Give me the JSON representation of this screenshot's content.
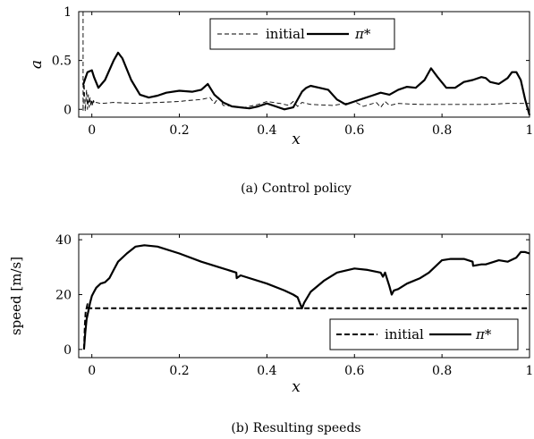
{
  "chart_data": [
    {
      "type": "line",
      "caption": "(a) Control policy",
      "xlabel": "x",
      "ylabel": "a",
      "xlim": [
        -0.03,
        1.0
      ],
      "ylim": [
        -0.08,
        1.0
      ],
      "xticks": [
        "0",
        "0.2",
        "0.4",
        "0.6",
        "0.8",
        "1"
      ],
      "xtick_values": [
        0,
        0.2,
        0.4,
        0.6,
        0.8,
        1
      ],
      "yticks": [
        "0",
        "0.5",
        "1"
      ],
      "ytick_values": [
        0,
        0.5,
        1
      ],
      "legend_position": "top-right",
      "series": [
        {
          "name": "initial",
          "style": "dashed",
          "x": [
            -0.02,
            -0.02,
            -0.018,
            -0.015,
            -0.012,
            -0.01,
            -0.008,
            -0.006,
            -0.004,
            -0.002,
            0.0,
            0.002,
            0.004,
            0.006,
            0.01,
            0.02,
            0.05,
            0.1,
            0.15,
            0.2,
            0.22,
            0.25,
            0.27,
            0.28,
            0.29,
            0.3,
            0.35,
            0.38,
            0.4,
            0.43,
            0.45,
            0.46,
            0.47,
            0.48,
            0.5,
            0.55,
            0.58,
            0.6,
            0.62,
            0.65,
            0.66,
            0.67,
            0.68,
            0.7,
            0.75,
            0.8,
            0.85,
            0.9,
            0.95,
            1.0
          ],
          "y": [
            1.0,
            -0.02,
            0.3,
            -0.02,
            0.2,
            0.0,
            0.15,
            0.02,
            0.12,
            0.03,
            0.1,
            0.04,
            0.09,
            0.06,
            0.07,
            0.06,
            0.07,
            0.06,
            0.07,
            0.08,
            0.09,
            0.1,
            0.12,
            0.06,
            0.12,
            0.04,
            0.02,
            0.05,
            0.08,
            0.06,
            0.04,
            0.08,
            0.03,
            0.07,
            0.05,
            0.04,
            0.06,
            0.08,
            0.03,
            0.07,
            0.02,
            0.08,
            0.04,
            0.06,
            0.05,
            0.05,
            0.05,
            0.05,
            0.06,
            0.06
          ]
        },
        {
          "name": "π*",
          "style": "solid",
          "x": [
            -0.02,
            -0.01,
            0.0,
            0.005,
            0.015,
            0.03,
            0.05,
            0.06,
            0.07,
            0.09,
            0.11,
            0.13,
            0.15,
            0.17,
            0.2,
            0.23,
            0.25,
            0.265,
            0.28,
            0.3,
            0.32,
            0.34,
            0.36,
            0.38,
            0.4,
            0.42,
            0.44,
            0.46,
            0.48,
            0.49,
            0.5,
            0.52,
            0.54,
            0.56,
            0.58,
            0.6,
            0.62,
            0.64,
            0.66,
            0.68,
            0.7,
            0.72,
            0.74,
            0.76,
            0.775,
            0.79,
            0.81,
            0.83,
            0.85,
            0.87,
            0.89,
            0.9,
            0.91,
            0.93,
            0.95,
            0.96,
            0.97,
            0.98,
            0.99,
            1.0
          ],
          "y": [
            0.25,
            0.38,
            0.4,
            0.33,
            0.22,
            0.3,
            0.5,
            0.58,
            0.52,
            0.3,
            0.15,
            0.12,
            0.14,
            0.17,
            0.19,
            0.18,
            0.2,
            0.26,
            0.15,
            0.07,
            0.03,
            0.02,
            0.01,
            0.03,
            0.06,
            0.03,
            0.0,
            0.02,
            0.18,
            0.22,
            0.24,
            0.22,
            0.2,
            0.1,
            0.05,
            0.08,
            0.11,
            0.14,
            0.17,
            0.15,
            0.2,
            0.23,
            0.22,
            0.3,
            0.42,
            0.33,
            0.22,
            0.22,
            0.28,
            0.3,
            0.33,
            0.32,
            0.28,
            0.26,
            0.32,
            0.38,
            0.38,
            0.3,
            0.1,
            -0.06
          ]
        }
      ]
    },
    {
      "type": "line",
      "caption": "(b) Resulting speeds",
      "xlabel": "x",
      "ylabel": "speed [m/s]",
      "xlim": [
        -0.03,
        1.0
      ],
      "ylim": [
        -3,
        42
      ],
      "xticks": [
        "0",
        "0.2",
        "0.4",
        "0.6",
        "0.8",
        "1"
      ],
      "xtick_values": [
        0,
        0.2,
        0.4,
        0.6,
        0.8,
        1
      ],
      "yticks": [
        "0",
        "20",
        "40"
      ],
      "ytick_values": [
        0,
        20,
        40
      ],
      "legend_position": "bottom-right",
      "series": [
        {
          "name": "initial",
          "style": "dashed",
          "x": [
            -0.018,
            -0.016,
            -0.014,
            -0.012,
            -0.01,
            -0.008,
            0.0,
            1.0
          ],
          "y": [
            0,
            9,
            14,
            15,
            16.5,
            15,
            15,
            15
          ]
        },
        {
          "name": "π*",
          "style": "solid",
          "x": [
            -0.018,
            -0.015,
            -0.012,
            -0.008,
            -0.004,
            0.0,
            0.005,
            0.01,
            0.02,
            0.03,
            0.04,
            0.05,
            0.06,
            0.08,
            0.1,
            0.12,
            0.15,
            0.2,
            0.25,
            0.3,
            0.33,
            0.331,
            0.34,
            0.4,
            0.44,
            0.46,
            0.47,
            0.475,
            0.48,
            0.485,
            0.5,
            0.53,
            0.56,
            0.6,
            0.63,
            0.66,
            0.665,
            0.67,
            0.68,
            0.685,
            0.69,
            0.7,
            0.72,
            0.75,
            0.77,
            0.8,
            0.82,
            0.85,
            0.87,
            0.871,
            0.89,
            0.9,
            0.93,
            0.95,
            0.97,
            0.98,
            0.99,
            1.0
          ],
          "y": [
            0,
            6,
            11,
            14,
            17,
            19.5,
            21,
            22.5,
            24,
            24.5,
            26,
            29,
            32,
            35,
            37.5,
            38,
            37.5,
            35,
            32,
            29.5,
            28,
            26,
            27,
            24,
            21.5,
            20,
            19,
            17,
            15,
            17,
            21,
            25,
            28,
            29.5,
            29,
            28,
            26.5,
            28,
            23,
            20,
            21.5,
            22,
            24,
            26,
            28,
            32.5,
            33,
            33,
            32,
            30.5,
            31,
            31,
            32.5,
            32,
            33.5,
            35.5,
            35.5,
            35
          ]
        }
      ]
    }
  ]
}
